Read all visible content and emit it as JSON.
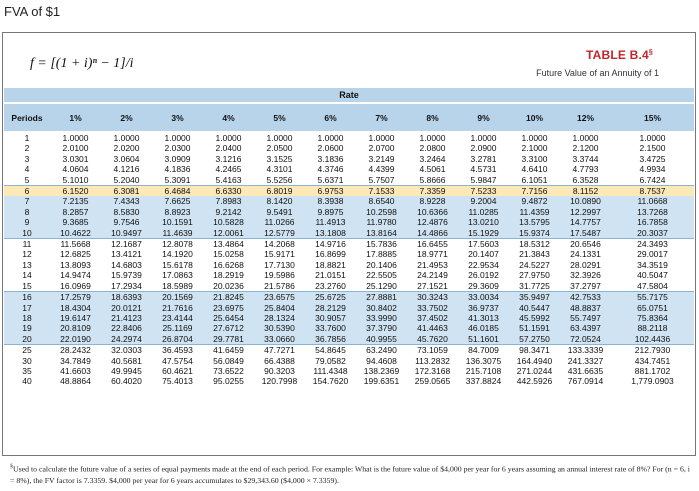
{
  "page_title": "FVA of $1",
  "formula": "f = [(1 + i)ⁿ − 1]/i",
  "table_label": "TABLE B.4",
  "table_label_mark": "§",
  "table_subtitle": "Future Value of an Annuity of 1",
  "rate_header": "Rate",
  "columns": [
    "Periods",
    "1%",
    "2%",
    "3%",
    "4%",
    "5%",
    "6%",
    "7%",
    "8%",
    "9%",
    "10%",
    "12%",
    "15%"
  ],
  "rows": [
    [
      "1",
      "1.0000",
      "1.0000",
      "1.0000",
      "1.0000",
      "1.0000",
      "1.0000",
      "1.0000",
      "1.0000",
      "1.0000",
      "1.0000",
      "1.0000",
      "1.0000"
    ],
    [
      "2",
      "2.0100",
      "2.0200",
      "2.0300",
      "2.0400",
      "2.0500",
      "2.0600",
      "2.0700",
      "2.0800",
      "2.0900",
      "2.1000",
      "2.1200",
      "2.1500"
    ],
    [
      "3",
      "3.0301",
      "3.0604",
      "3.0909",
      "3.1216",
      "3.1525",
      "3.1836",
      "3.2149",
      "3.2464",
      "3.2781",
      "3.3100",
      "3.3744",
      "3.4725"
    ],
    [
      "4",
      "4.0604",
      "4.1216",
      "4.1836",
      "4.2465",
      "4.3101",
      "4.3746",
      "4.4399",
      "4.5061",
      "4.5731",
      "4.6410",
      "4.7793",
      "4.9934"
    ],
    [
      "5",
      "5.1010",
      "5.2040",
      "5.3091",
      "5.4163",
      "5.5256",
      "5.6371",
      "5.7507",
      "5.8666",
      "5.9847",
      "6.1051",
      "6.3528",
      "6.7424"
    ],
    [
      "6",
      "6.1520",
      "6.3081",
      "6.4684",
      "6.6330",
      "6.8019",
      "6.9753",
      "7.1533",
      "7.3359",
      "7.5233",
      "7.7156",
      "8.1152",
      "8.7537"
    ],
    [
      "7",
      "7.2135",
      "7.4343",
      "7.6625",
      "7.8983",
      "8.1420",
      "8.3938",
      "8.6540",
      "8.9228",
      "9.2004",
      "9.4872",
      "10.0890",
      "11.0668"
    ],
    [
      "8",
      "8.2857",
      "8.5830",
      "8.8923",
      "9.2142",
      "9.5491",
      "9.8975",
      "10.2598",
      "10.6366",
      "11.0285",
      "11.4359",
      "12.2997",
      "13.7268"
    ],
    [
      "9",
      "9.3685",
      "9.7546",
      "10.1591",
      "10.5828",
      "11.0266",
      "11.4913",
      "11.9780",
      "12.4876",
      "13.0210",
      "13.5795",
      "14.7757",
      "16.7858"
    ],
    [
      "10",
      "10.4622",
      "10.9497",
      "11.4639",
      "12.0061",
      "12.5779",
      "13.1808",
      "13.8164",
      "14.4866",
      "15.1929",
      "15.9374",
      "17.5487",
      "20.3037"
    ],
    [
      "11",
      "11.5668",
      "12.1687",
      "12.8078",
      "13.4864",
      "14.2068",
      "14.9716",
      "15.7836",
      "16.6455",
      "17.5603",
      "18.5312",
      "20.6546",
      "24.3493"
    ],
    [
      "12",
      "12.6825",
      "13.4121",
      "14.1920",
      "15.0258",
      "15.9171",
      "16.8699",
      "17.8885",
      "18.9771",
      "20.1407",
      "21.3843",
      "24.1331",
      "29.0017"
    ],
    [
      "13",
      "13.8093",
      "14.6803",
      "15.6178",
      "16.6268",
      "17.7130",
      "18.8821",
      "20.1406",
      "21.4953",
      "22.9534",
      "24.5227",
      "28.0291",
      "34.3519"
    ],
    [
      "14",
      "14.9474",
      "15.9739",
      "17.0863",
      "18.2919",
      "19.5986",
      "21.0151",
      "22.5505",
      "24.2149",
      "26.0192",
      "27.9750",
      "32.3926",
      "40.5047"
    ],
    [
      "15",
      "16.0969",
      "17.2934",
      "18.5989",
      "20.0236",
      "21.5786",
      "23.2760",
      "25.1290",
      "27.1521",
      "29.3609",
      "31.7725",
      "37.2797",
      "47.5804"
    ],
    [
      "16",
      "17.2579",
      "18.6393",
      "20.1569",
      "21.8245",
      "23.6575",
      "25.6725",
      "27.8881",
      "30.3243",
      "33.0034",
      "35.9497",
      "42.7533",
      "55.7175"
    ],
    [
      "17",
      "18.4304",
      "20.0121",
      "21.7616",
      "23.6975",
      "25.8404",
      "28.2129",
      "30.8402",
      "33.7502",
      "36.9737",
      "40.5447",
      "48.8837",
      "65.0751"
    ],
    [
      "18",
      "19.6147",
      "21.4123",
      "23.4144",
      "25.6454",
      "28.1324",
      "30.9057",
      "33.9990",
      "37.4502",
      "41.3013",
      "45.5992",
      "55.7497",
      "75.8364"
    ],
    [
      "19",
      "20.8109",
      "22.8406",
      "25.1169",
      "27.6712",
      "30.5390",
      "33.7600",
      "37.3790",
      "41.4463",
      "46.0185",
      "51.1591",
      "63.4397",
      "88.2118"
    ],
    [
      "20",
      "22.0190",
      "24.2974",
      "26.8704",
      "29.7781",
      "33.0660",
      "36.7856",
      "40.9955",
      "45.7620",
      "51.1601",
      "57.2750",
      "72.0524",
      "102.4436"
    ],
    [
      "25",
      "28.2432",
      "32.0303",
      "36.4593",
      "41.6459",
      "47.7271",
      "54.8645",
      "63.2490",
      "73.1059",
      "84.7009",
      "98.3471",
      "133.3339",
      "212.7930"
    ],
    [
      "30",
      "34.7849",
      "40.5681",
      "47.5754",
      "56.0849",
      "66.4388",
      "79.0582",
      "94.4608",
      "113.2832",
      "136.3075",
      "164.4940",
      "241.3327",
      "434.7451"
    ],
    [
      "35",
      "41.6603",
      "49.9945",
      "60.4621",
      "73.6522",
      "90.3203",
      "111.4348",
      "138.2369",
      "172.3168",
      "215.7108",
      "271.0244",
      "431.6635",
      "881.1702"
    ],
    [
      "40",
      "48.8864",
      "60.4020",
      "75.4013",
      "95.0255",
      "120.7998",
      "154.7620",
      "199.6351",
      "259.0565",
      "337.8824",
      "442.5926",
      "767.0914",
      "1,779.0903"
    ]
  ],
  "footnote_mark": "§",
  "footnote": "Used to calculate the future value of a series of equal payments made at the end of each period. For example: What is the future value of $4,000 per year for 6 years assuming an annual interest rate of 8%? For (n = 6, i = 8%), the FV factor is 7.3359. $4,000 per year for 6 years accumulates to $29,343.60 ($4,000 × 7.3359).",
  "colors": {
    "header_band": "#b8d4ea",
    "row_shade": "#cfe3f2",
    "highlight": "#fde9b8",
    "label_red": "#c0262c"
  }
}
